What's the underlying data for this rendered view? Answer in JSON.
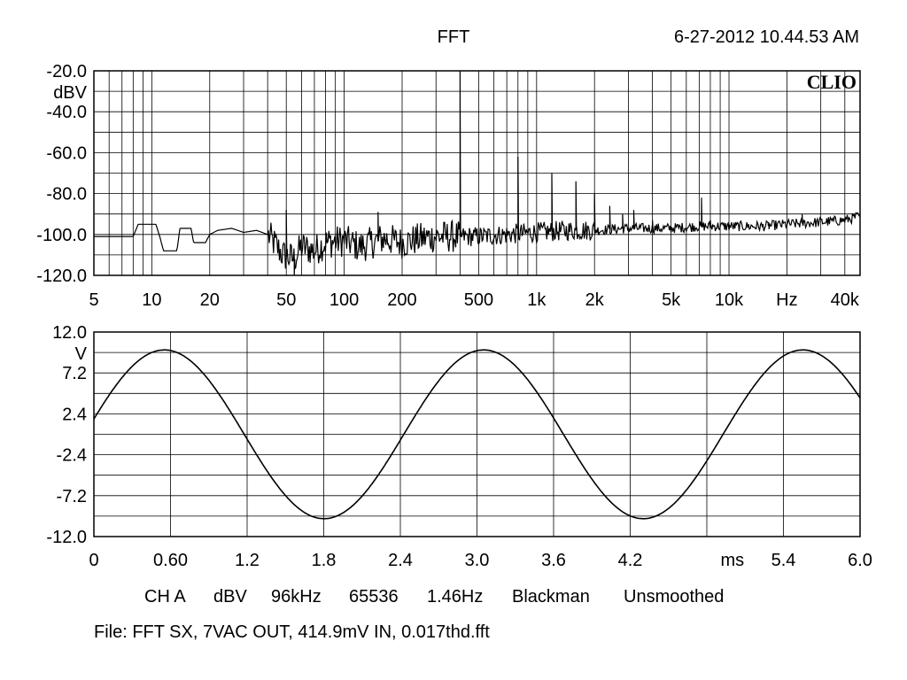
{
  "header": {
    "title": "FFT",
    "timestamp": "6-27-2012 10.44.53 AM",
    "logo": "CLIO"
  },
  "footer": {
    "settings": [
      "CH A",
      "dBV",
      "96kHz",
      "65536",
      "1.46Hz",
      "Blackman",
      "Unsmoothed"
    ],
    "file": "File: FFT SX, 7VAC OUT, 414.9mV IN, 0.017thd.fft"
  },
  "chart_data": [
    {
      "type": "line",
      "ylabel": "dBV",
      "xlabel": "Hz",
      "xscale": "log",
      "xlim": [
        5,
        48000
      ],
      "ylim": [
        -120,
        -20
      ],
      "grid": true,
      "y_ticks": [
        {
          "value": -20,
          "label": "-20.0"
        },
        {
          "value": -40,
          "label": "-40.0"
        },
        {
          "value": -60,
          "label": "-60.0"
        },
        {
          "value": -80,
          "label": "-80.0"
        },
        {
          "value": -100,
          "label": "-100.0"
        },
        {
          "value": -120,
          "label": "-120.0"
        }
      ],
      "x_ticks": [
        {
          "value": 5,
          "label": "5"
        },
        {
          "value": 10,
          "label": "10"
        },
        {
          "value": 20,
          "label": "20"
        },
        {
          "value": 50,
          "label": "50"
        },
        {
          "value": 100,
          "label": "100"
        },
        {
          "value": 200,
          "label": "200"
        },
        {
          "value": 500,
          "label": "500"
        },
        {
          "value": 1000,
          "label": "1k"
        },
        {
          "value": 2000,
          "label": "2k"
        },
        {
          "value": 5000,
          "label": "5k"
        },
        {
          "value": 10000,
          "label": "10k"
        },
        {
          "value": 40000,
          "label": "40k"
        }
      ],
      "x_unit_label_at": 20000,
      "baseline": [
        [
          5,
          -101
        ],
        [
          8,
          -101
        ],
        [
          8.5,
          -95
        ],
        [
          10.5,
          -95
        ],
        [
          11,
          -101
        ],
        [
          11.5,
          -108
        ],
        [
          13.5,
          -108
        ],
        [
          14,
          -97
        ],
        [
          16,
          -97
        ],
        [
          16.5,
          -104
        ],
        [
          19,
          -104
        ],
        [
          20,
          -100
        ],
        [
          22,
          -98
        ],
        [
          26,
          -97
        ],
        [
          30,
          -99
        ],
        [
          35,
          -98
        ],
        [
          40,
          -100
        ],
        [
          48,
          -110
        ],
        [
          55,
          -112
        ],
        [
          60,
          -106
        ],
        [
          70,
          -108
        ],
        [
          80,
          -104
        ],
        [
          100,
          -103
        ],
        [
          120,
          -106
        ],
        [
          140,
          -104
        ],
        [
          160,
          -102
        ],
        [
          200,
          -104
        ],
        [
          250,
          -102
        ],
        [
          300,
          -101
        ],
        [
          400,
          -101
        ],
        [
          500,
          -101
        ],
        [
          700,
          -100
        ],
        [
          1000,
          -99
        ],
        [
          1500,
          -98
        ],
        [
          2000,
          -98
        ],
        [
          3000,
          -97
        ],
        [
          5000,
          -97
        ],
        [
          7000,
          -96
        ],
        [
          10000,
          -96
        ],
        [
          15000,
          -96
        ],
        [
          20000,
          -95
        ],
        [
          30000,
          -94
        ],
        [
          40000,
          -93
        ],
        [
          48000,
          -91
        ]
      ],
      "noise": [
        {
          "from": 5,
          "to": 40,
          "amplitude": 0
        },
        {
          "from": 40,
          "to": 400,
          "amplitude": 8
        },
        {
          "from": 400,
          "to": 2000,
          "amplitude": 5
        },
        {
          "from": 2000,
          "to": 48000,
          "amplitude": 2.5
        }
      ],
      "peaks": [
        {
          "x": 50,
          "y": -88
        },
        {
          "x": 55,
          "y": -120
        },
        {
          "x": 150,
          "y": -89
        },
        {
          "x": 400,
          "y": -20
        },
        {
          "x": 800,
          "y": -62
        },
        {
          "x": 1200,
          "y": -70
        },
        {
          "x": 1600,
          "y": -74
        },
        {
          "x": 2000,
          "y": -80
        },
        {
          "x": 2400,
          "y": -86
        },
        {
          "x": 2800,
          "y": -90
        },
        {
          "x": 3200,
          "y": -88
        },
        {
          "x": 4000,
          "y": -93
        },
        {
          "x": 7200,
          "y": -82
        },
        {
          "x": 8000,
          "y": -93
        },
        {
          "x": 16000,
          "y": -94
        },
        {
          "x": 24000,
          "y": -90
        }
      ]
    },
    {
      "type": "line",
      "ylabel": "V",
      "xlabel": "ms",
      "xlim": [
        0,
        6.0
      ],
      "ylim": [
        -12,
        12
      ],
      "grid": true,
      "y_ticks": [
        {
          "value": 12,
          "label": "12.0"
        },
        {
          "value": 7.2,
          "label": "7.2"
        },
        {
          "value": 2.4,
          "label": "2.4"
        },
        {
          "value": -2.4,
          "label": "-2.4"
        },
        {
          "value": -7.2,
          "label": "-7.2"
        },
        {
          "value": -12,
          "label": "-12.0"
        }
      ],
      "x_ticks": [
        {
          "value": 0,
          "label": "0"
        },
        {
          "value": 0.6,
          "label": "0.60"
        },
        {
          "value": 1.2,
          "label": "1.2"
        },
        {
          "value": 1.8,
          "label": "1.8"
        },
        {
          "value": 2.4,
          "label": "2.4"
        },
        {
          "value": 3.0,
          "label": "3.0"
        },
        {
          "value": 3.6,
          "label": "3.6"
        },
        {
          "value": 4.2,
          "label": "4.2"
        },
        {
          "value": 5.4,
          "label": "5.4"
        },
        {
          "value": 6.0,
          "label": "6.0"
        }
      ],
      "x_unit_label_at": 5.0,
      "waveform": {
        "shape": "sine",
        "amplitude_v": 9.9,
        "frequency_hz": 400,
        "offset_v": 0,
        "start_value_v": 1.8
      }
    }
  ]
}
